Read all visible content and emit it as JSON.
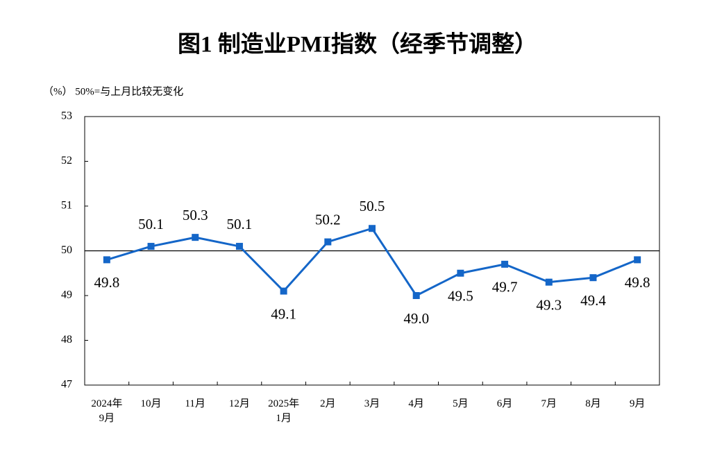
{
  "chart_data": {
    "type": "line",
    "title": "图1  制造业PMI指数（经季节调整）",
    "subtitle": "（%）  50%=与上月比较无变化",
    "categories": [
      "2024年\n9月",
      "10月",
      "11月",
      "12月",
      "2025年\n1月",
      "2月",
      "3月",
      "4月",
      "5月",
      "6月",
      "7月",
      "8月",
      "9月"
    ],
    "values": [
      49.8,
      50.1,
      50.3,
      50.1,
      49.1,
      50.2,
      50.5,
      49.0,
      49.5,
      49.7,
      49.3,
      49.4,
      49.8
    ],
    "value_labels": [
      "49.8",
      "50.1",
      "50.3",
      "50.1",
      "49.1",
      "50.2",
      "50.5",
      "49.0",
      "49.5",
      "49.7",
      "49.3",
      "49.4",
      "49.8"
    ],
    "color": "#1466c8",
    "reference_line": 50,
    "ylim": [
      47,
      53
    ],
    "yticks": [
      47,
      48,
      49,
      50,
      51,
      52,
      53
    ],
    "grid": false
  }
}
